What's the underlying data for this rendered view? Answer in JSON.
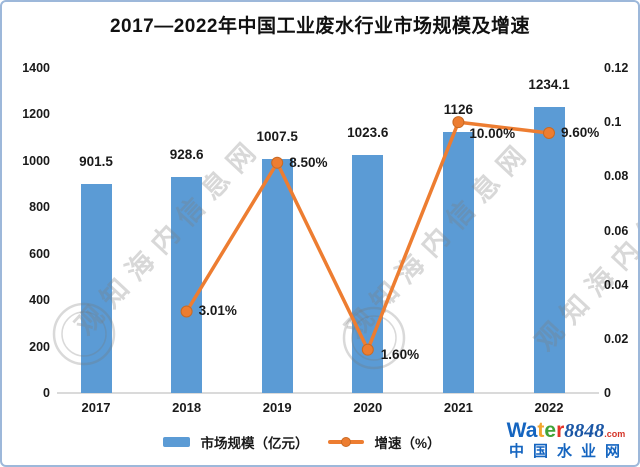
{
  "title": "2017—2022年中国工业废水行业市场规模及增速",
  "chart_data": {
    "type": "bar",
    "combo": "bar+line",
    "title": "2017—2022年中国工业废水行业市场规模及增速",
    "categories": [
      "2017",
      "2018",
      "2019",
      "2020",
      "2021",
      "2022"
    ],
    "series": [
      {
        "name": "市场规模（亿元）",
        "chart": "bar",
        "axis": "left",
        "color": "#5B9BD5",
        "values": [
          901.5,
          928.6,
          1007.5,
          1023.6,
          1126,
          1234.1
        ],
        "labels": [
          "901.5",
          "928.6",
          "1007.5",
          "1023.6",
          "1126",
          "1234.1"
        ]
      },
      {
        "name": "增速（%）",
        "chart": "line",
        "axis": "right",
        "color": "#ED7D31",
        "marker_edge_color": "#c96a24",
        "values": [
          null,
          0.0301,
          0.085,
          0.016,
          0.1,
          0.096
        ],
        "labels": [
          null,
          "3.01%",
          "8.50%",
          "1.60%",
          "10.00%",
          "9.60%"
        ]
      }
    ],
    "left_axis": {
      "min": 0,
      "max": 1400,
      "step": 200,
      "tick_labels": [
        "0",
        "200",
        "400",
        "600",
        "800",
        "1000",
        "1200",
        "1400"
      ]
    },
    "right_axis": {
      "min": 0,
      "max": 0.12,
      "step": 0.02,
      "tick_labels": [
        "0",
        "0.02",
        "0.04",
        "0.06",
        "0.08",
        "0.1",
        "0.12"
      ]
    },
    "grid": false,
    "legend_position": "bottom"
  },
  "watermark": {
    "text": "观知海内信息网",
    "color": "rgba(125,125,125,0.30)"
  },
  "logo": {
    "line1_parts": [
      {
        "t": "Wa",
        "c": "#1565c0",
        "cls": ""
      },
      {
        "t": "t",
        "c": "#f2a52d",
        "cls": ""
      },
      {
        "t": "e",
        "c": "#41a338",
        "cls": ""
      },
      {
        "t": "r",
        "c": "#e53328",
        "cls": ""
      },
      {
        "t": "8848",
        "c": "#1a56a5",
        "cls": "serif"
      },
      {
        "t": ".com",
        "c": "#d43428",
        "cls": "tiny"
      }
    ],
    "line2": "中国水业网",
    "line2_color": "#1565c0"
  }
}
